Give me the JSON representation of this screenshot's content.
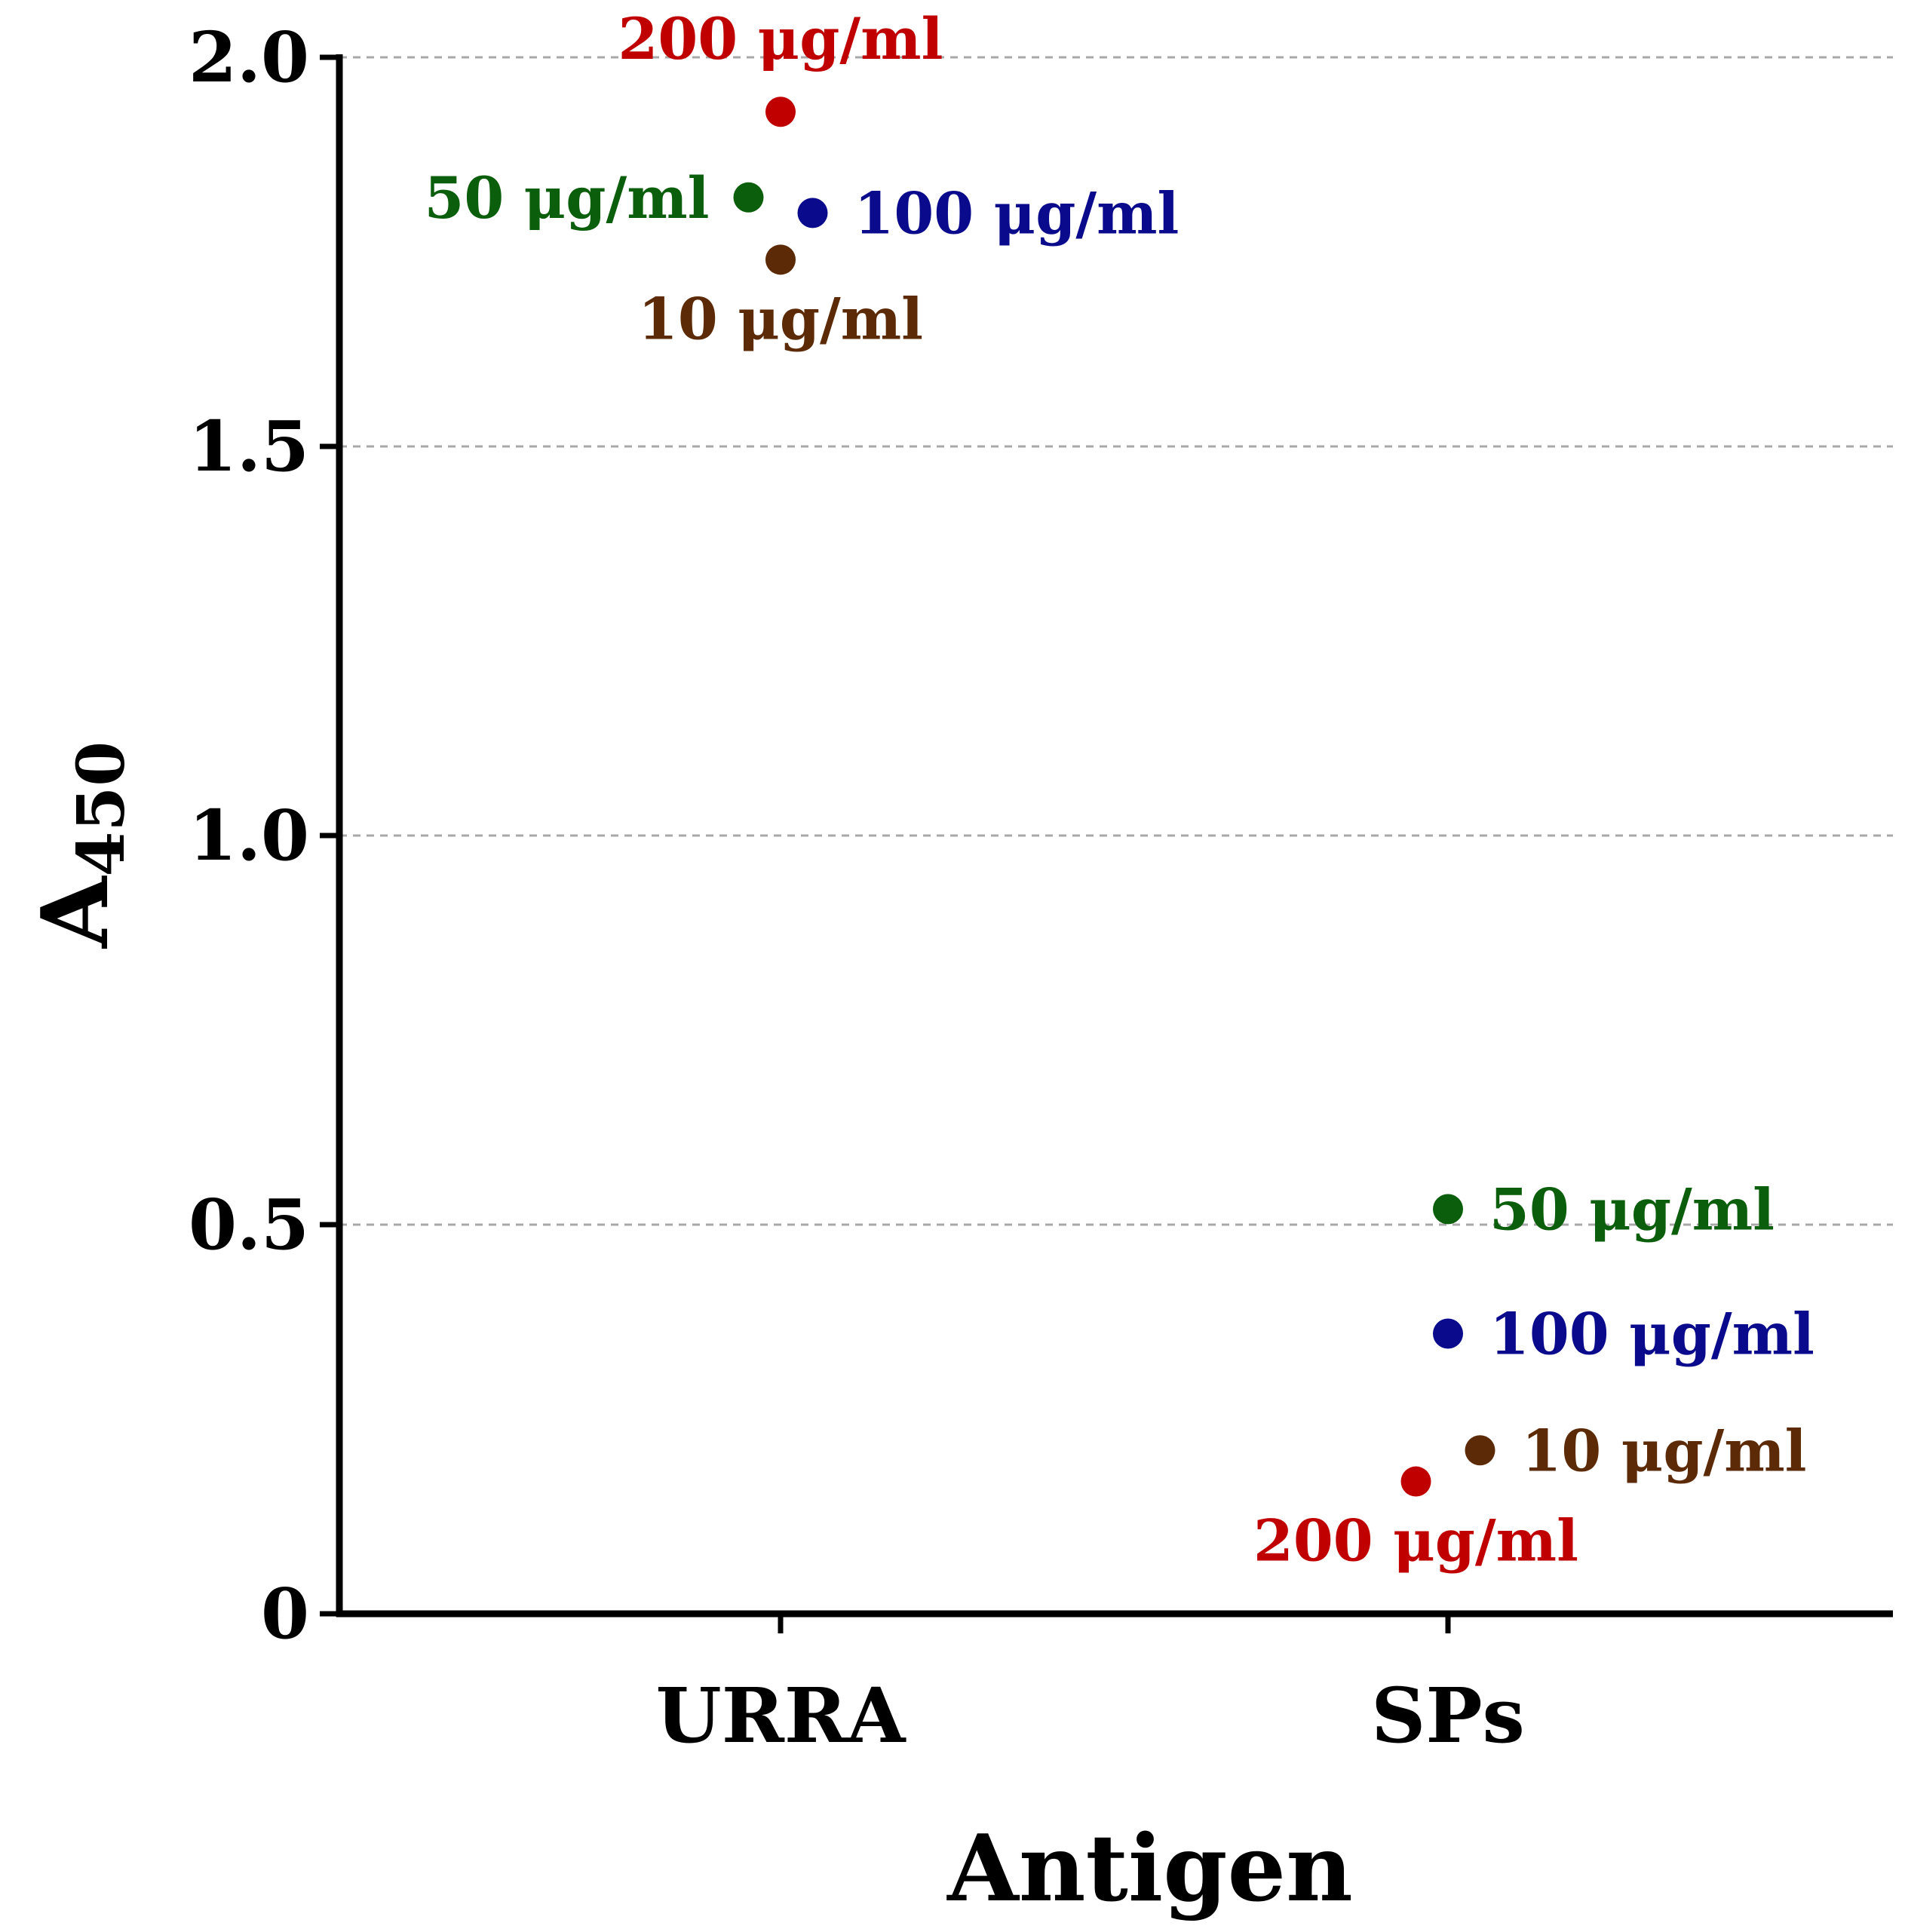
{
  "chart_data": {
    "type": "scatter",
    "title": "",
    "xlabel": "Antigen",
    "ylabel_main": "A",
    "ylabel_sub": "450",
    "ylim": [
      0,
      2.0
    ],
    "yticks": [
      0,
      0.5,
      1.0,
      1.5,
      2.0
    ],
    "ytick_labels": [
      "0",
      "0.5",
      "1.0",
      "1.5",
      "2.0"
    ],
    "grid": true,
    "categories": [
      "URRA",
      "SPs"
    ],
    "series": [
      {
        "name": "200 μg/ml",
        "color": "#c00000",
        "points": [
          {
            "category": "URRA",
            "offset": 0.0,
            "y": 1.93,
            "label": "200 μg/ml",
            "label_pos": "above"
          },
          {
            "category": "SPs",
            "offset": -0.05,
            "y": 0.17,
            "label": "200 μg/ml",
            "label_pos": "below"
          }
        ]
      },
      {
        "name": "50 μg/ml",
        "color": "#0b5e0b",
        "points": [
          {
            "category": "URRA",
            "offset": -0.05,
            "y": 1.82,
            "label": "50 μg/ml",
            "label_pos": "left"
          },
          {
            "category": "SPs",
            "offset": 0.0,
            "y": 0.52,
            "label": "50 μg/ml",
            "label_pos": "right"
          }
        ]
      },
      {
        "name": "100 μg/ml",
        "color": "#0a0a8c",
        "points": [
          {
            "category": "URRA",
            "offset": 0.05,
            "y": 1.8,
            "label": "100 μg/ml",
            "label_pos": "right"
          },
          {
            "category": "SPs",
            "offset": 0.0,
            "y": 0.36,
            "label": "100 μg/ml",
            "label_pos": "right"
          }
        ]
      },
      {
        "name": "10 μg/ml",
        "color": "#5c2a06",
        "points": [
          {
            "category": "URRA",
            "offset": 0.0,
            "y": 1.74,
            "label": "10 μg/ml",
            "label_pos": "below"
          },
          {
            "category": "SPs",
            "offset": 0.05,
            "y": 0.21,
            "label": "10 μg/ml",
            "label_pos": "right"
          }
        ]
      }
    ]
  }
}
